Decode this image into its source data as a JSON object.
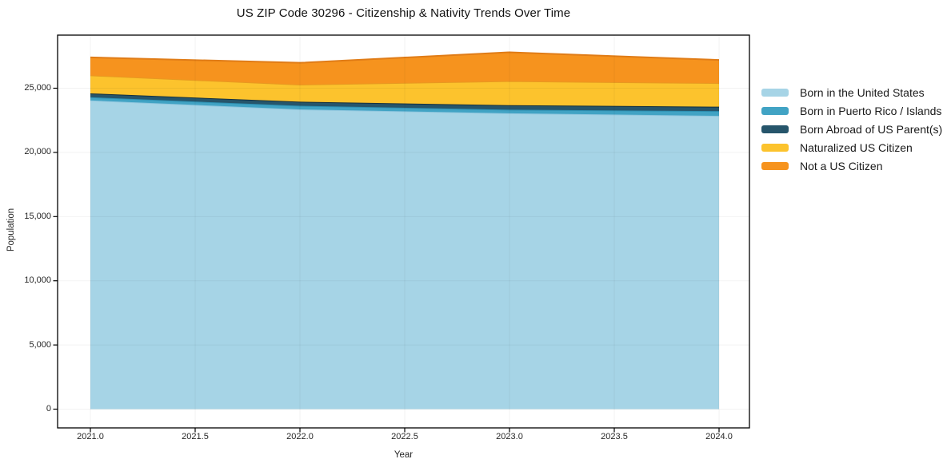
{
  "title": "US ZIP Code 30296 - Citizenship & Nativity Trends Over Time",
  "chart_data": {
    "type": "area",
    "stacked": true,
    "title": "US ZIP Code 30296 - Citizenship & Nativity Trends Over Time",
    "xlabel": "Year",
    "ylabel": "Population",
    "x": [
      2021,
      2022,
      2023,
      2024
    ],
    "series": [
      {
        "name": "Born in the United States",
        "values": [
          24050,
          23350,
          23050,
          22850
        ],
        "fill": "#A6D4E6",
        "line": "#8FC6DE"
      },
      {
        "name": "Born in Puerto Rico / Islands",
        "values": [
          250,
          280,
          280,
          370
        ],
        "fill": "#41A3C4",
        "line": "#2D90B2"
      },
      {
        "name": "Born Abroad of US Parent(s)",
        "values": [
          300,
          320,
          350,
          340
        ],
        "fill": "#26556B",
        "line": "#16313F"
      },
      {
        "name": "Naturalized US Citizen",
        "values": [
          1400,
          1330,
          1870,
          1840
        ],
        "fill": "#FCC32D",
        "line": "#E79A20"
      },
      {
        "name": "Not a US Citizen",
        "values": [
          1400,
          1700,
          2250,
          1800
        ],
        "fill": "#F6931E",
        "line": "#E07C17"
      }
    ],
    "x_tick_labels": [
      "2021.0",
      "2021.5",
      "2022.0",
      "2022.5",
      "2023.0",
      "2023.5",
      "2024.0"
    ],
    "x_tick_values": [
      2021,
      2021.5,
      2022,
      2022.5,
      2023,
      2023.5,
      2024
    ],
    "y_tick_labels": [
      "0",
      "5,000",
      "10,000",
      "15,000",
      "20,000",
      "25,000"
    ],
    "y_tick_values": [
      0,
      5000,
      10000,
      15000,
      20000,
      25000
    ],
    "xlim": [
      2020.8435,
      2024.145
    ],
    "ylim": [
      -1460,
      29136
    ],
    "grid": true,
    "grid_color": "rgba(0,0,0,0.05)",
    "frame_color": "#000000",
    "legend_position": "right-outside"
  }
}
